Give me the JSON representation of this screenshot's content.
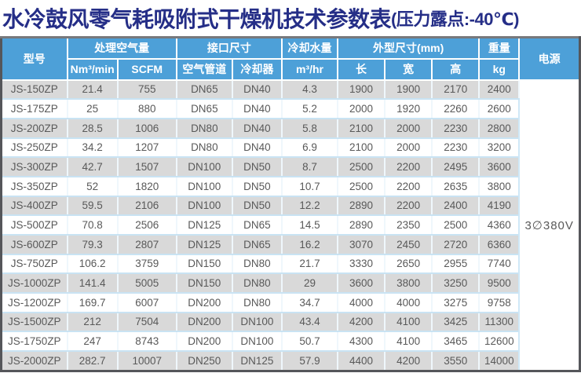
{
  "title": {
    "main": "水冷鼓风零气耗吸附式干燥机技术参数表",
    "sub": "(压力露点:-40℃)",
    "color": "#252e87"
  },
  "theme": {
    "header_bg": "#4da0d8",
    "header_text": "#ffffff",
    "row_gray": "#d9d9d9",
    "row_white": "#ffffff",
    "row_divider": "#c9e3f3",
    "data_text": "#595959",
    "outer_border": "#55565a"
  },
  "table": {
    "header": {
      "model": "型号",
      "air_volume_group": "处理空气量",
      "nm3_min": "Nm³/min",
      "scfm": "SCFM",
      "interface_group": "接口尺寸",
      "air_pipe": "空气管道",
      "cooler": "冷却器",
      "cooling_water_group": "冷却水量",
      "m3_hr": "m³/hr",
      "dimensions_group": "外型尺寸(mm)",
      "length": "长",
      "width": "宽",
      "height": "高",
      "weight_group": "重量",
      "kg": "kg",
      "power": "电源"
    },
    "row_keys": [
      "model",
      "nm3_min",
      "scfm",
      "air_pipe",
      "cooler",
      "water",
      "length",
      "width",
      "height",
      "kg"
    ],
    "power_value": "3∅380V",
    "rows": [
      {
        "model": "JS-150ZP",
        "nm3_min": "21.4",
        "scfm": "755",
        "air_pipe": "DN65",
        "cooler": "DN40",
        "water": "4.3",
        "length": "1900",
        "width": "1900",
        "height": "2170",
        "kg": "2400"
      },
      {
        "model": "JS-175ZP",
        "nm3_min": "25",
        "scfm": "880",
        "air_pipe": "DN65",
        "cooler": "DN40",
        "water": "5.2",
        "length": "2000",
        "width": "1920",
        "height": "2260",
        "kg": "2600"
      },
      {
        "model": "JS-200ZP",
        "nm3_min": "28.5",
        "scfm": "1006",
        "air_pipe": "DN80",
        "cooler": "DN40",
        "water": "5.8",
        "length": "2100",
        "width": "2000",
        "height": "2230",
        "kg": "2800"
      },
      {
        "model": "JS-250ZP",
        "nm3_min": "34.2",
        "scfm": "1207",
        "air_pipe": "DN80",
        "cooler": "DN40",
        "water": "6.9",
        "length": "2100",
        "width": "2000",
        "height": "2230",
        "kg": "3200"
      },
      {
        "model": "JS-300ZP",
        "nm3_min": "42.7",
        "scfm": "1507",
        "air_pipe": "DN100",
        "cooler": "DN50",
        "water": "8.7",
        "length": "2500",
        "width": "2200",
        "height": "2495",
        "kg": "3600"
      },
      {
        "model": "JS-350ZP",
        "nm3_min": "52",
        "scfm": "1820",
        "air_pipe": "DN100",
        "cooler": "DN50",
        "water": "10.7",
        "length": "2500",
        "width": "2200",
        "height": "2635",
        "kg": "3800"
      },
      {
        "model": "JS-400ZP",
        "nm3_min": "59.5",
        "scfm": "2106",
        "air_pipe": "DN100",
        "cooler": "DN50",
        "water": "12.2",
        "length": "2890",
        "width": "2200",
        "height": "2400",
        "kg": "4190"
      },
      {
        "model": "JS-500ZP",
        "nm3_min": "70.8",
        "scfm": "2506",
        "air_pipe": "DN125",
        "cooler": "DN65",
        "water": "14.5",
        "length": "2890",
        "width": "2350",
        "height": "2500",
        "kg": "4360"
      },
      {
        "model": "JS-600ZP",
        "nm3_min": "79.3",
        "scfm": "2807",
        "air_pipe": "DN125",
        "cooler": "DN65",
        "water": "16.2",
        "length": "3070",
        "width": "2450",
        "height": "2720",
        "kg": "6360"
      },
      {
        "model": "JS-750ZP",
        "nm3_min": "106.2",
        "scfm": "3759",
        "air_pipe": "DN150",
        "cooler": "DN80",
        "water": "21.7",
        "length": "3330",
        "width": "2650",
        "height": "2955",
        "kg": "7740"
      },
      {
        "model": "JS-1000ZP",
        "nm3_min": "141.4",
        "scfm": "5005",
        "air_pipe": "DN150",
        "cooler": "DN80",
        "water": "29",
        "length": "3600",
        "width": "3800",
        "height": "3250",
        "kg": "9500"
      },
      {
        "model": "JS-1200ZP",
        "nm3_min": "169.7",
        "scfm": "6007",
        "air_pipe": "DN200",
        "cooler": "DN80",
        "water": "34.7",
        "length": "4000",
        "width": "4000",
        "height": "3275",
        "kg": "9758"
      },
      {
        "model": "JS-1500ZP",
        "nm3_min": "212",
        "scfm": "7504",
        "air_pipe": "DN200",
        "cooler": "DN100",
        "water": "43.4",
        "length": "4200",
        "width": "4100",
        "height": "3425",
        "kg": "11300"
      },
      {
        "model": "JS-1750ZP",
        "nm3_min": "247",
        "scfm": "8743",
        "air_pipe": "DN200",
        "cooler": "DN100",
        "water": "50.7",
        "length": "4300",
        "width": "4100",
        "height": "3465",
        "kg": "12600"
      },
      {
        "model": "JS-2000ZP",
        "nm3_min": "282.7",
        "scfm": "10007",
        "air_pipe": "DN250",
        "cooler": "DN125",
        "water": "57.9",
        "length": "4400",
        "width": "4200",
        "height": "3550",
        "kg": "14000"
      }
    ]
  }
}
